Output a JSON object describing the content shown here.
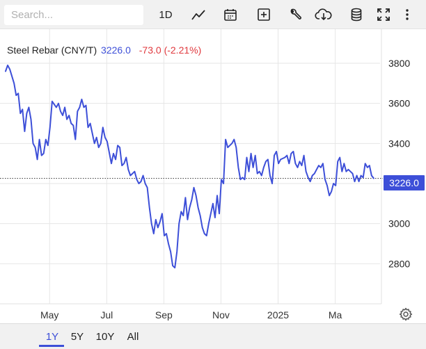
{
  "toolbar": {
    "search_placeholder": "Search...",
    "interval_label": "1D",
    "buttons": [
      {
        "name": "chart-style-button",
        "icon": "line-chart-icon"
      },
      {
        "name": "calendar-button",
        "icon": "calendar-icon"
      },
      {
        "name": "add-indicator-button",
        "icon": "plus-square-icon"
      },
      {
        "name": "tools-button",
        "icon": "wrench-icon"
      },
      {
        "name": "download-button",
        "icon": "cloud-download-icon"
      },
      {
        "name": "database-button",
        "icon": "database-icon"
      },
      {
        "name": "fullscreen-button",
        "icon": "fullscreen-icon"
      },
      {
        "name": "more-button",
        "icon": "vertical-dots-icon"
      }
    ]
  },
  "legend": {
    "name": "Steel Rebar (CNY/T)",
    "last": "3226.0",
    "change": "-73.0 (-2.21%)"
  },
  "last_badge": "3226.0",
  "range_buttons": [
    {
      "label": "1Y",
      "active": true
    },
    {
      "label": "5Y",
      "active": false
    },
    {
      "label": "10Y",
      "active": false
    },
    {
      "label": "All",
      "active": false
    }
  ],
  "colors": {
    "line": "#3d4fd8",
    "negative": "#e0393e",
    "grid": "#e6e6e6",
    "toolbar_bg": "#f1f1f1"
  },
  "chart_data": {
    "type": "line",
    "series": [
      {
        "values": [
          [
            0.0,
            3760
          ],
          [
            0.5,
            3790
          ],
          [
            1.0,
            3770
          ],
          [
            2.0,
            3700
          ],
          [
            2.5,
            3640
          ],
          [
            3.0,
            3650
          ],
          [
            3.5,
            3550
          ],
          [
            4.0,
            3570
          ],
          [
            4.5,
            3460
          ],
          [
            5.0,
            3550
          ],
          [
            5.5,
            3580
          ],
          [
            6.0,
            3520
          ],
          [
            6.5,
            3400
          ],
          [
            7.0,
            3380
          ],
          [
            7.5,
            3320
          ],
          [
            8.0,
            3420
          ],
          [
            8.5,
            3340
          ],
          [
            9.0,
            3350
          ],
          [
            9.5,
            3420
          ],
          [
            10.0,
            3390
          ],
          [
            10.5,
            3480
          ],
          [
            11.0,
            3610
          ],
          [
            12.0,
            3580
          ],
          [
            12.5,
            3600
          ],
          [
            13.0,
            3560
          ],
          [
            13.5,
            3540
          ],
          [
            14.0,
            3580
          ],
          [
            14.5,
            3520
          ],
          [
            15.0,
            3540
          ],
          [
            15.5,
            3500
          ],
          [
            16.0,
            3490
          ],
          [
            16.5,
            3420
          ],
          [
            17.0,
            3560
          ],
          [
            17.5,
            3580
          ],
          [
            18.0,
            3620
          ],
          [
            18.5,
            3580
          ],
          [
            19.0,
            3590
          ],
          [
            19.5,
            3480
          ],
          [
            20.0,
            3500
          ],
          [
            21.0,
            3400
          ],
          [
            21.5,
            3430
          ],
          [
            22.0,
            3380
          ],
          [
            22.5,
            3400
          ],
          [
            23.0,
            3480
          ],
          [
            23.5,
            3430
          ],
          [
            24.0,
            3410
          ],
          [
            25.0,
            3300
          ],
          [
            25.5,
            3350
          ],
          [
            26.0,
            3320
          ],
          [
            26.5,
            3390
          ],
          [
            27.0,
            3380
          ],
          [
            27.5,
            3290
          ],
          [
            28.0,
            3300
          ],
          [
            28.5,
            3330
          ],
          [
            29.0,
            3270
          ],
          [
            29.5,
            3240
          ],
          [
            30.0,
            3250
          ],
          [
            30.5,
            3260
          ],
          [
            31.0,
            3220
          ],
          [
            31.5,
            3200
          ],
          [
            32.0,
            3210
          ],
          [
            32.5,
            3240
          ],
          [
            33.0,
            3200
          ],
          [
            33.5,
            3180
          ],
          [
            34.0,
            3080
          ],
          [
            34.5,
            3000
          ],
          [
            35.0,
            2950
          ],
          [
            35.5,
            3020
          ],
          [
            36.0,
            2980
          ],
          [
            36.5,
            3010
          ],
          [
            37.0,
            3050
          ],
          [
            37.5,
            2940
          ],
          [
            38.0,
            2950
          ],
          [
            38.5,
            2900
          ],
          [
            39.0,
            2860
          ],
          [
            39.5,
            2790
          ],
          [
            40.0,
            2780
          ],
          [
            40.5,
            2860
          ],
          [
            41.0,
            3000
          ],
          [
            41.5,
            3060
          ],
          [
            42.0,
            3040
          ],
          [
            42.5,
            3130
          ],
          [
            43.0,
            3020
          ],
          [
            43.5,
            3080
          ],
          [
            44.0,
            3120
          ],
          [
            44.5,
            3180
          ],
          [
            45.0,
            3140
          ],
          [
            45.5,
            3080
          ],
          [
            46.0,
            3040
          ],
          [
            46.5,
            2980
          ],
          [
            47.0,
            2950
          ],
          [
            47.5,
            2940
          ],
          [
            48.0,
            3000
          ],
          [
            48.5,
            3050
          ],
          [
            49.0,
            3100
          ],
          [
            49.5,
            3030
          ],
          [
            50.0,
            3140
          ],
          [
            50.5,
            3050
          ],
          [
            51.0,
            3220
          ],
          [
            51.5,
            3200
          ],
          [
            52.0,
            3420
          ],
          [
            52.5,
            3380
          ],
          [
            53.0,
            3390
          ],
          [
            53.5,
            3400
          ],
          [
            54.0,
            3420
          ],
          [
            54.5,
            3380
          ],
          [
            55.0,
            3280
          ],
          [
            55.5,
            3220
          ],
          [
            56.0,
            3230
          ],
          [
            56.5,
            3220
          ],
          [
            57.0,
            3330
          ],
          [
            57.5,
            3260
          ],
          [
            58.0,
            3350
          ],
          [
            58.5,
            3280
          ],
          [
            59.0,
            3340
          ],
          [
            59.5,
            3250
          ],
          [
            60.0,
            3260
          ],
          [
            60.5,
            3240
          ],
          [
            61.0,
            3280
          ],
          [
            61.5,
            3310
          ],
          [
            62.0,
            3320
          ],
          [
            62.5,
            3240
          ],
          [
            63.0,
            3200
          ],
          [
            63.5,
            3340
          ],
          [
            64.0,
            3360
          ],
          [
            64.5,
            3300
          ],
          [
            65.0,
            3320
          ],
          [
            66.0,
            3330
          ],
          [
            66.5,
            3340
          ],
          [
            67.0,
            3300
          ],
          [
            67.5,
            3350
          ],
          [
            68.0,
            3360
          ],
          [
            68.5,
            3300
          ],
          [
            69.0,
            3280
          ],
          [
            69.5,
            3310
          ],
          [
            70.0,
            3290
          ],
          [
            70.5,
            3340
          ],
          [
            71.0,
            3260
          ],
          [
            71.5,
            3230
          ],
          [
            72.0,
            3210
          ],
          [
            72.5,
            3240
          ],
          [
            73.0,
            3250
          ],
          [
            73.5,
            3270
          ],
          [
            74.0,
            3290
          ],
          [
            74.5,
            3280
          ],
          [
            75.0,
            3300
          ],
          [
            75.5,
            3220
          ],
          [
            76.0,
            3190
          ],
          [
            76.5,
            3140
          ],
          [
            77.0,
            3160
          ],
          [
            77.5,
            3200
          ],
          [
            78.0,
            3190
          ],
          [
            78.5,
            3310
          ],
          [
            79.0,
            3330
          ],
          [
            79.5,
            3260
          ],
          [
            80.0,
            3300
          ],
          [
            80.5,
            3260
          ],
          [
            81.0,
            3270
          ],
          [
            81.5,
            3260
          ],
          [
            82.0,
            3250
          ],
          [
            82.5,
            3210
          ],
          [
            83.0,
            3240
          ],
          [
            83.5,
            3210
          ],
          [
            84.0,
            3240
          ],
          [
            84.5,
            3230
          ],
          [
            85.0,
            3300
          ],
          [
            85.5,
            3280
          ],
          [
            86.0,
            3290
          ],
          [
            86.5,
            3240
          ],
          [
            87.0,
            3226
          ]
        ]
      }
    ],
    "x_ticks": [
      {
        "label": "May",
        "x": 10.4
      },
      {
        "label": "Jul",
        "x": 23.9
      },
      {
        "label": "Sep",
        "x": 37.4
      },
      {
        "label": "Nov",
        "x": 50.9
      },
      {
        "label": "2025",
        "x": 64.4
      },
      {
        "label": "Ma",
        "x": 77.9
      }
    ],
    "y_ticks": [
      2800,
      3000,
      3200,
      3400,
      3600,
      3800
    ],
    "xlim": [
      0,
      88.5
    ],
    "ylim": [
      2600,
      3970
    ],
    "last_value": 3226.0,
    "grid": true,
    "y_axis_position": "right"
  }
}
